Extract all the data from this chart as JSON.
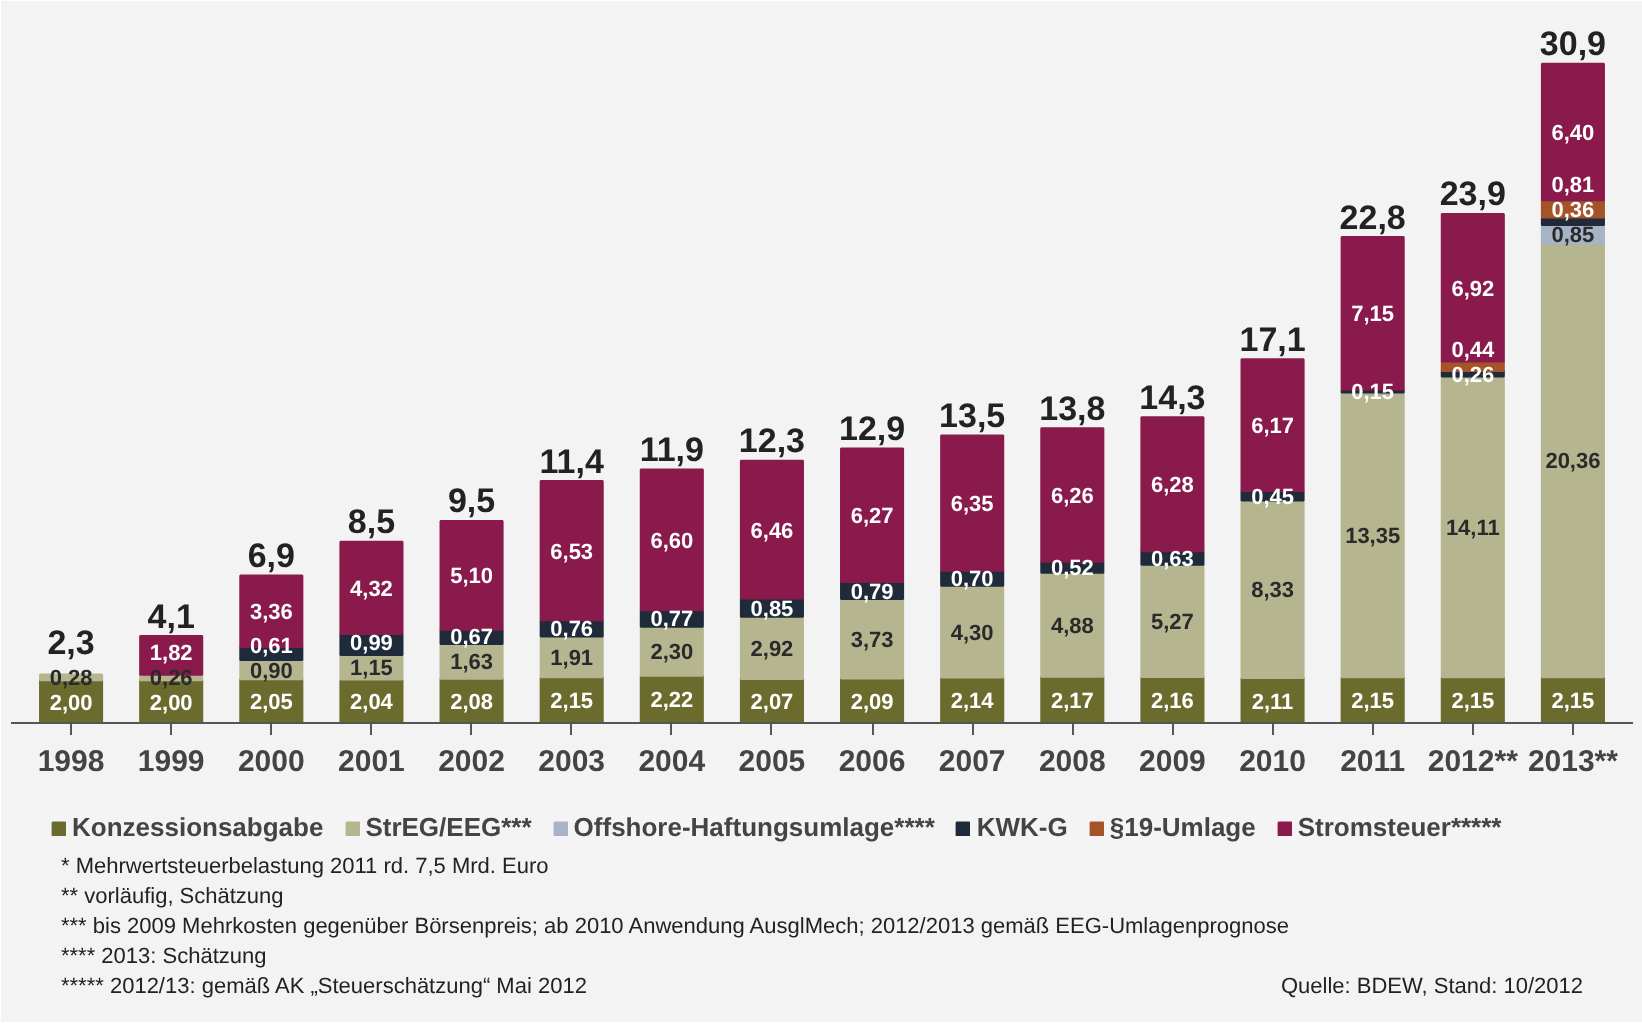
{
  "chart_data": {
    "type": "bar",
    "stacked": true,
    "legend": "bottom",
    "categories": [
      "1998",
      "1999",
      "2000",
      "2001",
      "2002",
      "2003",
      "2004",
      "2005",
      "2006",
      "2007",
      "2008",
      "2009",
      "2010",
      "2011",
      "2012**",
      "2013**"
    ],
    "series": [
      {
        "name": "Konzessionsabgabe",
        "color": "#6b6b2e",
        "values": [
          2.0,
          2.0,
          2.05,
          2.04,
          2.08,
          2.15,
          2.22,
          2.07,
          2.09,
          2.14,
          2.17,
          2.16,
          2.11,
          2.15,
          2.15,
          2.15
        ],
        "value_labels": [
          "2,00",
          "2,00",
          "2,05",
          "2,04",
          "2,08",
          "2,15",
          "2,22",
          "2,07",
          "2,09",
          "2,14",
          "2,17",
          "2,16",
          "2,11",
          "2,15",
          "2,15",
          "2,15"
        ]
      },
      {
        "name": "StrEG/EEG***",
        "color": "#b5b58f",
        "values": [
          0.28,
          0.26,
          0.9,
          1.15,
          1.63,
          1.91,
          2.3,
          2.92,
          3.73,
          4.3,
          4.88,
          5.27,
          8.33,
          13.35,
          14.11,
          20.36
        ],
        "value_labels": [
          "0,28",
          "0,26",
          "0,90",
          "1,15",
          "1,63",
          "1,91",
          "2,30",
          "2,92",
          "3,73",
          "4,30",
          "4,88",
          "5,27",
          "8,33",
          "13,35",
          "14,11",
          "20,36"
        ]
      },
      {
        "name": "Offshore-Haftungsumlage****",
        "color": "#a8b4c6",
        "values": [
          null,
          null,
          null,
          null,
          null,
          null,
          null,
          null,
          null,
          null,
          null,
          null,
          null,
          null,
          null,
          0.85
        ],
        "value_labels": [
          null,
          null,
          null,
          null,
          null,
          null,
          null,
          null,
          null,
          null,
          null,
          null,
          null,
          null,
          null,
          "0,85"
        ]
      },
      {
        "name": "KWK-G",
        "color": "#1f2b3a",
        "values": [
          null,
          null,
          0.61,
          0.99,
          0.67,
          0.76,
          0.77,
          0.85,
          0.79,
          0.7,
          0.52,
          0.63,
          0.45,
          0.15,
          0.26,
          0.36
        ],
        "value_labels": [
          null,
          null,
          "0,61",
          "0,99",
          "0,67",
          "0,76",
          "0,77",
          "0,85",
          "0,79",
          "0,70",
          "0,52",
          "0,63",
          "0,45",
          "0,15",
          "0,26",
          "0,36"
        ]
      },
      {
        "name": "§19-Umlage",
        "color": "#a5542a",
        "values": [
          null,
          null,
          null,
          null,
          null,
          null,
          null,
          null,
          null,
          null,
          null,
          null,
          null,
          null,
          0.44,
          0.81
        ],
        "value_labels": [
          null,
          null,
          null,
          null,
          null,
          null,
          null,
          null,
          null,
          null,
          null,
          null,
          null,
          null,
          "0,44",
          "0,81"
        ]
      },
      {
        "name": "Stromsteuer*****",
        "color": "#8a1a4b",
        "values": [
          null,
          1.82,
          3.36,
          4.32,
          5.1,
          6.53,
          6.6,
          6.46,
          6.27,
          6.35,
          6.26,
          6.28,
          6.17,
          7.15,
          6.92,
          6.4
        ],
        "value_labels": [
          null,
          "1,82",
          "3,36",
          "4,32",
          "5,10",
          "6,53",
          "6,60",
          "6,46",
          "6,27",
          "6,35",
          "6,26",
          "6,28",
          "6,17",
          "7,15",
          "6,92",
          "6,40"
        ]
      }
    ],
    "totals": [
      "2,3",
      "4,1",
      "6,9",
      "8,5",
      "9,5",
      "11,4",
      "11,9",
      "12,3",
      "12,9",
      "13,5",
      "13,8",
      "14,3",
      "17,1",
      "22,8",
      "23,9",
      "30,9"
    ],
    "annotations": [
      "* Mehrwertsteuerbelastung 2011 rd. 7,5 Mrd. Euro",
      "** vorläufig, Schätzung",
      "*** bis 2009 Mehrkosten gegenüber Börsenpreis; ab 2010 Anwendung AusglMech; 2012/2013 gemäß EEG-Umlagenprognose",
      "**** 2013: Schätzung",
      "***** 2012/13: gemäß AK „Steuerschätzung“ Mai 2012",
      "Quelle: BDEW, Stand: 10/2012"
    ]
  }
}
